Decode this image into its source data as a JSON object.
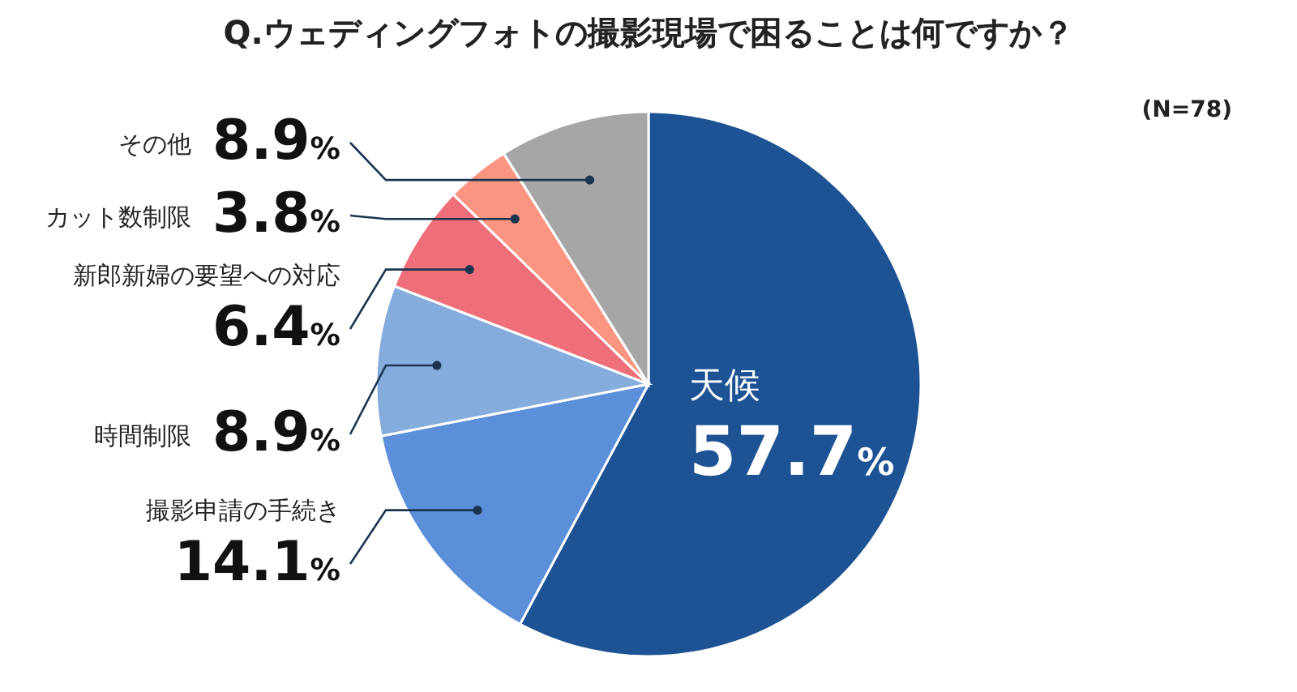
{
  "chart_data": {
    "type": "pie",
    "title": "Q.ウェディングフォトの撮影現場で困ることは何ですか？",
    "annotations": [
      "(N=78)"
    ],
    "categories": [
      "天候",
      "撮影申請の手続き",
      "時間制限",
      "新郎新婦の要望への対応",
      "カット数制限",
      "その他"
    ],
    "values": [
      57.7,
      14.1,
      8.9,
      6.4,
      3.8,
      8.9
    ],
    "value_labels": [
      "57.7%",
      "14.1%",
      "8.9%",
      "6.4%",
      "3.8%",
      "8.9%"
    ],
    "colors": [
      "#1d5395",
      "#5b8fd9",
      "#84acdc",
      "#ee6f79",
      "#fb9582",
      "#a6a6a6"
    ]
  }
}
